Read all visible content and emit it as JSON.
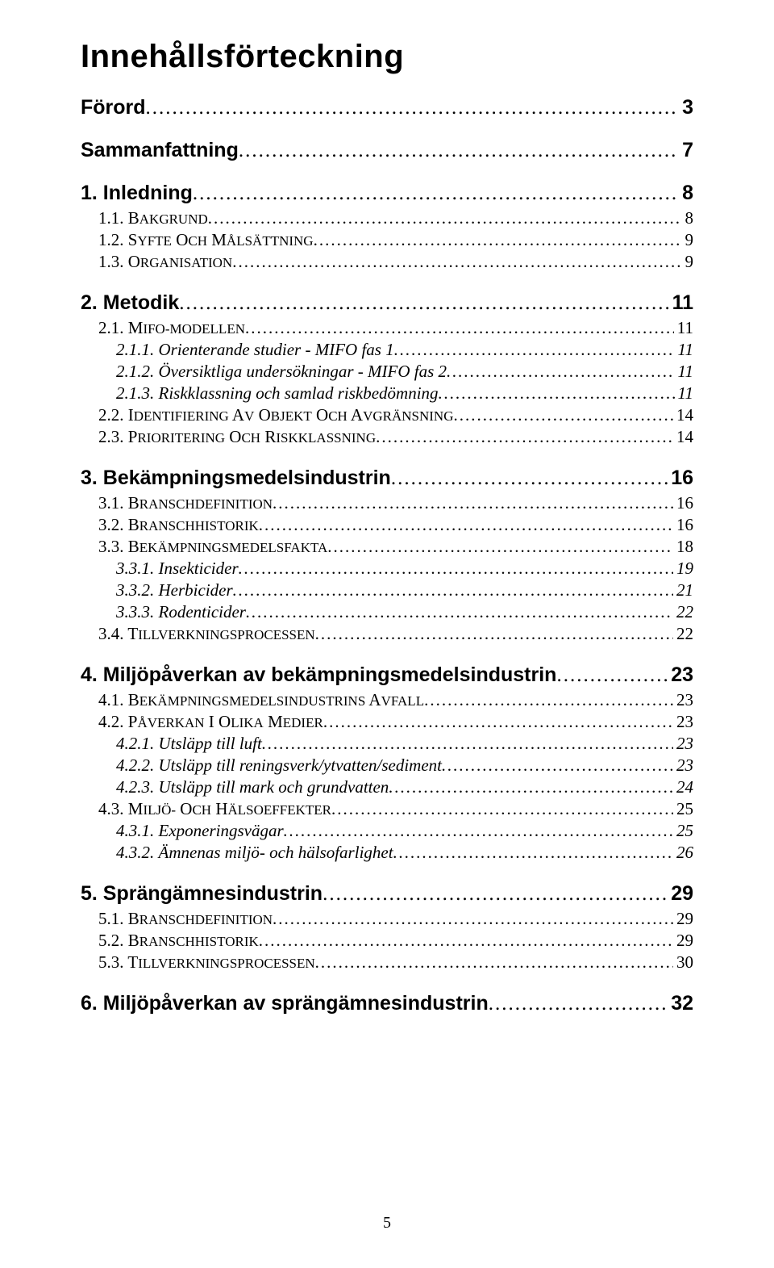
{
  "title": "Innehållsförteckning",
  "page_number": "5",
  "entries": [
    {
      "level": 0,
      "label": "Förord",
      "page": "3"
    },
    {
      "level": 0,
      "label": "Sammanfattning",
      "page": "7"
    },
    {
      "level": 0,
      "label": "1. Inledning",
      "page": "8"
    },
    {
      "level": 1,
      "label": "1.1. BAKGRUND",
      "page": "8"
    },
    {
      "level": 1,
      "label": "1.2. SYFTE OCH MÅLSÄTTNING",
      "page": "9"
    },
    {
      "level": 1,
      "label": "1.3. ORGANISATION",
      "page": "9"
    },
    {
      "level": 0,
      "label": "2. Metodik",
      "page": "11"
    },
    {
      "level": 1,
      "label": "2.1. MIFO-MODELLEN",
      "page": "11"
    },
    {
      "level": 2,
      "label": "2.1.1. Orienterande studier - MIFO fas 1",
      "page": "11"
    },
    {
      "level": 2,
      "label": "2.1.2. Översiktliga undersökningar - MIFO fas 2",
      "page": "11"
    },
    {
      "level": 2,
      "label": "2.1.3. Riskklassning och samlad riskbedömning",
      "page": "11"
    },
    {
      "level": 1,
      "label": "2.2. IDENTIFIERING AV OBJEKT OCH AVGRÄNSNING",
      "page": "14"
    },
    {
      "level": 1,
      "label": "2.3. PRIORITERING OCH RISKKLASSNING",
      "page": "14"
    },
    {
      "level": 0,
      "label": "3. Bekämpningsmedelsindustrin",
      "page": "16"
    },
    {
      "level": 1,
      "label": "3.1. BRANSCHDEFINITION",
      "page": "16"
    },
    {
      "level": 1,
      "label": "3.2. BRANSCHHISTORIK",
      "page": "16"
    },
    {
      "level": 1,
      "label": "3.3. BEKÄMPNINGSMEDELSFAKTA",
      "page": "18"
    },
    {
      "level": 2,
      "label": "3.3.1. Insekticider",
      "page": "19"
    },
    {
      "level": 2,
      "label": "3.3.2. Herbicider",
      "page": "21"
    },
    {
      "level": 2,
      "label": "3.3.3. Rodenticider",
      "page": "22"
    },
    {
      "level": 1,
      "label": "3.4. TILLVERKNINGSPROCESSEN",
      "page": "22"
    },
    {
      "level": 0,
      "label": "4. Miljöpåverkan av bekämpningsmedelsindustrin",
      "page": "23"
    },
    {
      "level": 1,
      "label": "4.1. BEKÄMPNINGSMEDELSINDUSTRINS AVFALL",
      "page": "23"
    },
    {
      "level": 1,
      "label": "4.2. PÅVERKAN I OLIKA MEDIER",
      "page": "23"
    },
    {
      "level": 2,
      "label": "4.2.1. Utsläpp till luft",
      "page": "23"
    },
    {
      "level": 2,
      "label": "4.2.2. Utsläpp till reningsverk/ytvatten/sediment",
      "page": "23"
    },
    {
      "level": 2,
      "label": "4.2.3. Utsläpp till mark och grundvatten",
      "page": "24"
    },
    {
      "level": 1,
      "label": "4.3. MILJÖ- OCH HÄLSOEFFEKTER",
      "page": "25"
    },
    {
      "level": 2,
      "label": "4.3.1. Exponeringsvägar",
      "page": "25"
    },
    {
      "level": 2,
      "label": "4.3.2. Ämnenas miljö- och hälsofarlighet",
      "page": "26"
    },
    {
      "level": 0,
      "label": "5. Sprängämnesindustrin",
      "page": "29"
    },
    {
      "level": 1,
      "label": "5.1. BRANSCHDEFINITION",
      "page": "29"
    },
    {
      "level": 1,
      "label": "5.2. BRANSCHHISTORIK",
      "page": "29"
    },
    {
      "level": 1,
      "label": "5.3. TILLVERKNINGSPROCESSEN",
      "page": "30"
    },
    {
      "level": 0,
      "label": "6. Miljöpåverkan av sprängämnesindustrin",
      "page": "32"
    }
  ]
}
